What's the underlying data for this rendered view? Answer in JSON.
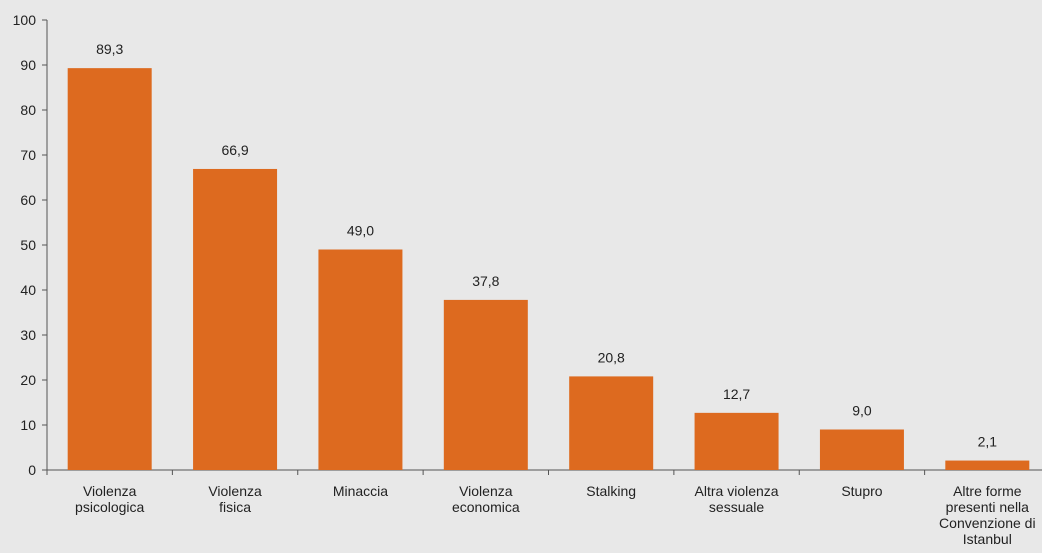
{
  "chart_data": {
    "type": "bar",
    "categories": [
      [
        "Violenza",
        "psicologica"
      ],
      [
        "Violenza",
        "fisica"
      ],
      [
        "Minaccia"
      ],
      [
        "Violenza",
        "economica"
      ],
      [
        "Stalking"
      ],
      [
        "Altra violenza",
        "sessuale"
      ],
      [
        "Stupro"
      ],
      [
        "Altre forme",
        "presenti nella",
        "Convenzione di",
        "Istanbul"
      ]
    ],
    "values": [
      89.3,
      66.9,
      49.0,
      37.8,
      20.8,
      12.7,
      9.0,
      2.1
    ],
    "data_labels": [
      "89,3",
      "66,9",
      "49,0",
      "37,8",
      "20,8",
      "12,7",
      "9,0",
      "2,1"
    ],
    "ylim": [
      0,
      100
    ],
    "yticks": [
      0,
      10,
      20,
      30,
      40,
      50,
      60,
      70,
      80,
      90,
      100
    ],
    "bar_color": "#dd6a1f",
    "axis_color": "#555555",
    "grid": false,
    "legend": "none"
  }
}
